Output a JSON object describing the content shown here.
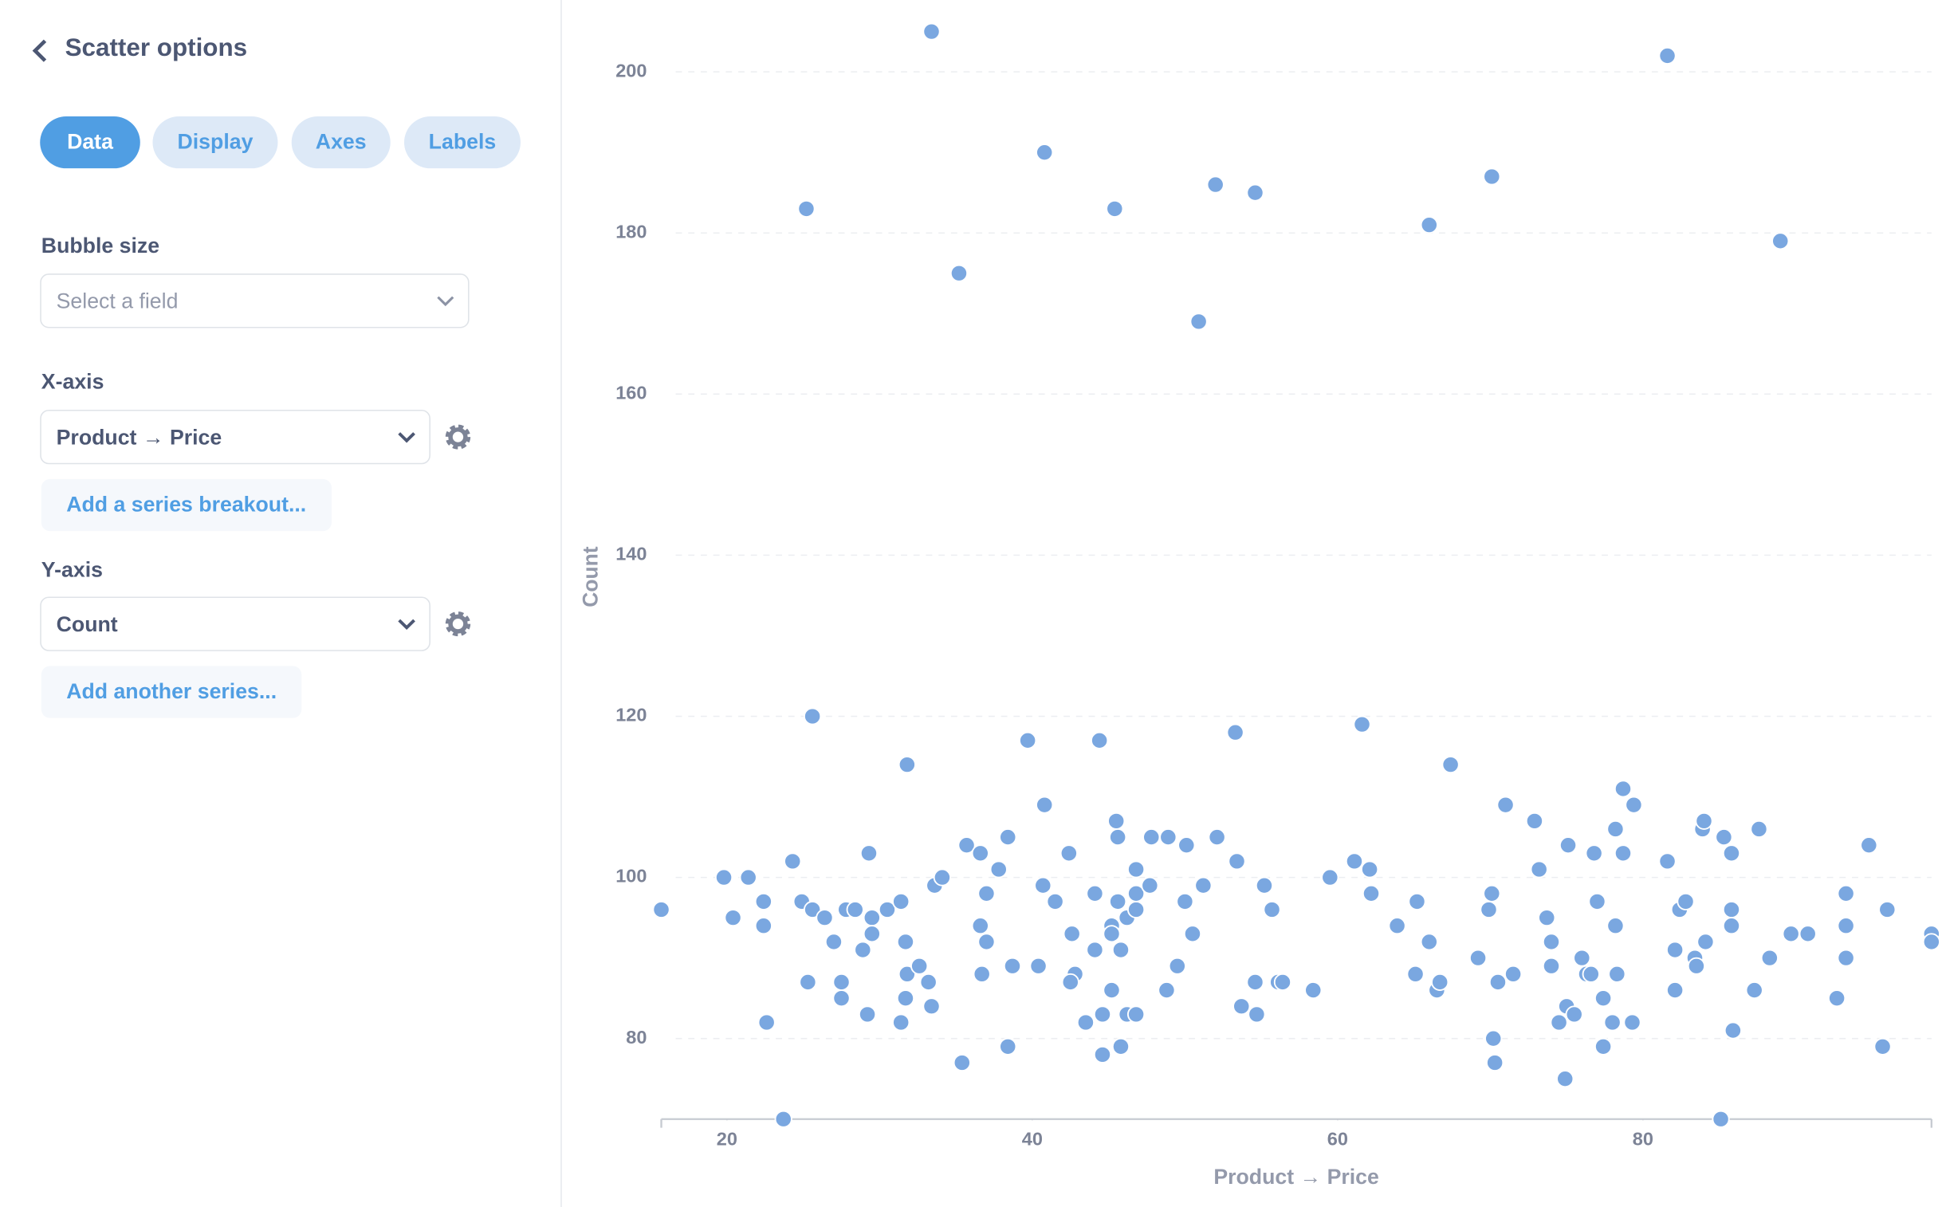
{
  "panel": {
    "title": "Scatter options",
    "tabs": [
      "Data",
      "Display",
      "Axes",
      "Labels"
    ],
    "bubble_size": {
      "label": "Bubble size",
      "placeholder": "Select a field"
    },
    "x_axis": {
      "label": "X-axis",
      "field": "Product → Price",
      "add_button": "Add a series breakout..."
    },
    "y_axis": {
      "label": "Y-axis",
      "field": "Count",
      "add_button": "Add another series..."
    }
  },
  "chart_data": {
    "type": "scatter",
    "x_label": "Product → Price",
    "y_label": "Count",
    "xlim": [
      15.7,
      98.9
    ],
    "ylim": [
      70,
      206
    ],
    "xticks": [
      20,
      40,
      60,
      80
    ],
    "yticks": [
      80,
      100,
      120,
      140,
      160,
      180,
      200
    ],
    "grid": true,
    "color": "#7aa7e0",
    "x": [
      33.4,
      81.6,
      25.2,
      40.8,
      45.4,
      52.0,
      54.6,
      35.2,
      50.9,
      66.0,
      70.1,
      89.0,
      25.6,
      61.6,
      53.3,
      39.7,
      44.4,
      31.8,
      67.4,
      78.7,
      40.8,
      71.0,
      79.4,
      15.7,
      19.8,
      21.4,
      20.4,
      22.4,
      22.4,
      22.6,
      23.7,
      24.3,
      24.9,
      25.6,
      25.3,
      26.4,
      27.0,
      27.5,
      27.5,
      27.8,
      28.4,
      28.9,
      29.3,
      29.5,
      29.5,
      29.2,
      30.5,
      31.4,
      31.4,
      31.7,
      31.8,
      31.7,
      32.6,
      33.2,
      33.6,
      34.1,
      33.4,
      35.4,
      35.7,
      36.6,
      36.6,
      37.0,
      37.0,
      36.7,
      37.8,
      38.4,
      38.7,
      38.4,
      40.4,
      40.7,
      41.5,
      42.4,
      42.6,
      42.8,
      42.5,
      43.5,
      44.1,
      44.1,
      44.6,
      44.6,
      45.2,
      45.2,
      45.2,
      45.5,
      45.6,
      45.6,
      45.8,
      45.8,
      46.2,
      46.2,
      46.8,
      46.8,
      46.8,
      46.8,
      47.7,
      47.8,
      48.9,
      48.8,
      49.5,
      50.0,
      50.1,
      50.5,
      51.2,
      52.1,
      53.4,
      53.7,
      54.6,
      54.7,
      55.2,
      55.7,
      56.1,
      56.4,
      58.4,
      59.5,
      61.1,
      62.1,
      62.2,
      63.9,
      65.1,
      65.2,
      66.0,
      66.5,
      66.7,
      69.2,
      69.9,
      70.1,
      70.2,
      70.3,
      70.5,
      71.5,
      72.9,
      73.2,
      73.7,
      74.0,
      74.0,
      74.5,
      75.0,
      74.9,
      75.1,
      75.5,
      76.0,
      76.3,
      76.6,
      76.8,
      77.0,
      77.4,
      77.4,
      78.0,
      78.2,
      78.2,
      78.3,
      78.7,
      79.3,
      81.6,
      82.1,
      82.1,
      82.4,
      82.8,
      83.4,
      83.5,
      83.9,
      84.0,
      84.1,
      85.1,
      85.3,
      85.8,
      85.8,
      85.8,
      85.9,
      87.3,
      87.6,
      88.3,
      89.7,
      90.8,
      92.7,
      93.3,
      93.3,
      93.3,
      94.8,
      95.7,
      96.0,
      98.9,
      98.9
    ],
    "values": [
      205,
      202,
      183,
      190,
      183,
      186,
      185,
      175,
      169,
      181,
      187,
      179,
      120,
      119,
      118,
      117,
      117,
      114,
      114,
      111,
      109,
      109,
      109,
      96,
      100,
      100,
      95,
      97,
      94,
      82,
      70,
      102,
      97,
      96,
      87,
      95,
      92,
      87,
      85,
      96,
      96,
      91,
      103,
      95,
      93,
      83,
      96,
      97,
      82,
      92,
      88,
      85,
      89,
      87,
      99,
      100,
      84,
      77,
      104,
      103,
      94,
      98,
      92,
      88,
      101,
      105,
      89,
      79,
      89,
      99,
      97,
      103,
      93,
      88,
      87,
      82,
      98,
      91,
      78,
      83,
      94,
      93,
      86,
      107,
      105,
      97,
      79,
      91,
      95,
      83,
      83,
      101,
      96,
      98,
      99,
      105,
      105,
      86,
      89,
      97,
      104,
      93,
      99,
      105,
      102,
      84,
      87,
      83,
      99,
      96,
      87,
      87,
      86,
      100,
      102,
      101,
      98,
      94,
      88,
      97,
      92,
      86,
      87,
      90,
      96,
      98,
      80,
      77,
      87,
      88,
      107,
      101,
      95,
      92,
      89,
      82,
      84,
      75,
      104,
      83,
      90,
      88,
      88,
      103,
      97,
      85,
      79,
      82,
      106,
      94,
      88,
      103,
      82,
      102,
      91,
      86,
      96,
      97,
      90,
      89,
      106,
      107,
      92,
      70,
      105,
      103,
      96,
      94,
      81,
      86,
      106,
      90,
      93,
      93,
      85,
      98,
      94,
      90,
      104,
      79,
      96,
      93,
      92
    ]
  }
}
